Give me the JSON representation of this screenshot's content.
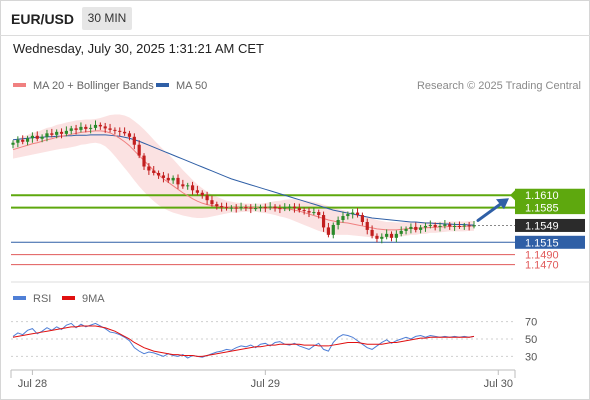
{
  "header": {
    "symbol": "EUR/USD",
    "timeframe": "30 MIN",
    "datetime": "Wednesday, July 30, 2025 1:31:21 AM CET"
  },
  "legend": {
    "ma20": {
      "label": "MA 20 + Bollinger Bands",
      "color": "#f08080"
    },
    "ma50": {
      "label": "MA 50",
      "color": "#2f5fa6"
    },
    "credit": "Research © 2025 Trading Central"
  },
  "rsi_legend": {
    "rsi": {
      "label": "RSI",
      "color": "#4f7fd6"
    },
    "ma": {
      "label": "9MA",
      "color": "#e01010"
    }
  },
  "colors": {
    "resistance": "#5ea80e",
    "support": "#2f5fa6",
    "target": "#e05a5a",
    "up": "#2a8a2a",
    "down": "#c21f1f",
    "band": "#fbe2e2",
    "current": "#2b2b2b",
    "arrow": "#2f5fa6"
  },
  "chart_data": [
    {
      "type": "candlestick",
      "title": "EUR/USD",
      "subtitle": "30 MIN",
      "x_labels": [
        "Jul 28",
        "Jul 29",
        "Jul 30"
      ],
      "x_label_positions": [
        4,
        52,
        100
      ],
      "ylim": [
        1.1455,
        1.177
      ],
      "last_price": 1.1549,
      "levels": [
        {
          "value": 1.161,
          "label": "1.1610",
          "kind": "resistance"
        },
        {
          "value": 1.1585,
          "label": "1.1585",
          "kind": "resistance"
        },
        {
          "value": 1.1549,
          "label": "1.1549",
          "kind": "current"
        },
        {
          "value": 1.1515,
          "label": "1.1515",
          "kind": "support"
        },
        {
          "value": 1.149,
          "label": "1.1490",
          "kind": "target"
        },
        {
          "value": 1.147,
          "label": "1.1470",
          "kind": "target"
        }
      ],
      "close": [
        1.1716,
        1.1722,
        1.1718,
        1.1725,
        1.173,
        1.1724,
        1.1728,
        1.1735,
        1.1732,
        1.1738,
        1.1734,
        1.174,
        1.1745,
        1.1742,
        1.1748,
        1.1744,
        1.1746,
        1.1752,
        1.1749,
        1.1745,
        1.1742,
        1.174,
        1.1738,
        1.1735,
        1.1728,
        1.1712,
        1.169,
        1.1668,
        1.166,
        1.1655,
        1.165,
        1.1645,
        1.164,
        1.1645,
        1.1632,
        1.1628,
        1.163,
        1.162,
        1.1615,
        1.161,
        1.16,
        1.1592,
        1.1588,
        1.1586,
        1.1584,
        1.1585,
        1.1584,
        1.1586,
        1.1585,
        1.1583,
        1.1584,
        1.1586,
        1.1585,
        1.1587,
        1.1584,
        1.1583,
        1.1585,
        1.1587,
        1.1584,
        1.158,
        1.1578,
        1.1575,
        1.1576,
        1.157,
        1.1545,
        1.153,
        1.155,
        1.156,
        1.1568,
        1.1572,
        1.1575,
        1.157,
        1.1556,
        1.154,
        1.1528,
        1.1522,
        1.1526,
        1.1532,
        1.1524,
        1.1532,
        1.1538,
        1.1542,
        1.1546,
        1.154,
        1.1545,
        1.1548,
        1.155,
        1.1546,
        1.1548,
        1.1551,
        1.1547,
        1.1548,
        1.1547,
        1.1549,
        1.1548,
        1.1549
      ],
      "ma20": [
        1.1702,
        1.1705,
        1.1708,
        1.1711,
        1.1714,
        1.1716,
        1.1719,
        1.1722,
        1.1724,
        1.1727,
        1.1729,
        1.1731,
        1.1733,
        1.1735,
        1.1737,
        1.1738,
        1.1739,
        1.174,
        1.174,
        1.1739,
        1.1736,
        1.1731,
        1.1725,
        1.1718,
        1.171,
        1.17,
        1.169,
        1.168,
        1.167,
        1.166,
        1.1651,
        1.1643,
        1.1636,
        1.1629,
        1.1622,
        1.1615,
        1.1609,
        1.1603,
        1.1598,
        1.1594,
        1.1591,
        1.1589,
        1.1588,
        1.1587,
        1.1586,
        1.1586,
        1.1585,
        1.1585,
        1.1585,
        1.1585,
        1.1585,
        1.1584,
        1.1584,
        1.1584,
        1.1584,
        1.1583,
        1.1583,
        1.1582,
        1.158,
        1.1578,
        1.1575,
        1.1572,
        1.1569,
        1.1566,
        1.1563,
        1.156,
        1.1558,
        1.1556,
        1.1555,
        1.1554,
        1.1552,
        1.155,
        1.1548,
        1.1546,
        1.1544,
        1.1542,
        1.1541,
        1.154,
        1.154,
        1.154,
        1.1541,
        1.1542,
        1.1543,
        1.1543,
        1.1544,
        1.1544,
        1.1545,
        1.1545,
        1.1546,
        1.1546,
        1.1547,
        1.1547,
        1.1547,
        1.1547,
        1.1548,
        1.1548
      ],
      "ma50": [
        1.1722,
        1.1723,
        1.1724,
        1.1725,
        1.1726,
        1.1727,
        1.1727,
        1.1728,
        1.1728,
        1.1729,
        1.1729,
        1.173,
        1.173,
        1.1731,
        1.1731,
        1.1731,
        1.1732,
        1.1732,
        1.1732,
        1.1732,
        1.1731,
        1.173,
        1.1729,
        1.1727,
        1.1725,
        1.1722,
        1.1719,
        1.1715,
        1.1711,
        1.1707,
        1.1703,
        1.1699,
        1.1695,
        1.1691,
        1.1687,
        1.1683,
        1.1679,
        1.1675,
        1.1671,
        1.1667,
        1.1663,
        1.1659,
        1.1655,
        1.1651,
        1.1647,
        1.1643,
        1.164,
        1.1637,
        1.1634,
        1.1631,
        1.1628,
        1.1625,
        1.1622,
        1.1619,
        1.1616,
        1.1613,
        1.161,
        1.1607,
        1.1604,
        1.1601,
        1.1598,
        1.1595,
        1.1592,
        1.1589,
        1.1586,
        1.1583,
        1.158,
        1.1578,
        1.1576,
        1.1574,
        1.1572,
        1.157,
        1.1568,
        1.1566,
        1.1564,
        1.1563,
        1.1562,
        1.1561,
        1.156,
        1.1559,
        1.1558,
        1.1557,
        1.1556,
        1.1556,
        1.1555,
        1.1554,
        1.1554,
        1.1553,
        1.1553,
        1.1552,
        1.1552,
        1.1551,
        1.1551,
        1.1551,
        1.155,
        1.155
      ],
      "band_width": [
        0.0018,
        0.0019,
        0.002,
        0.0021,
        0.0022,
        0.0022,
        0.0023,
        0.0024,
        0.0024,
        0.0025,
        0.0025,
        0.0026,
        0.0026,
        0.0026,
        0.0025,
        0.0025,
        0.0024,
        0.0024,
        0.0026,
        0.003,
        0.0036,
        0.0042,
        0.0048,
        0.0053,
        0.0057,
        0.006,
        0.0062,
        0.0063,
        0.0063,
        0.0062,
        0.0061,
        0.0059,
        0.0057,
        0.0054,
        0.005,
        0.0046,
        0.0042,
        0.0038,
        0.0034,
        0.003,
        0.0026,
        0.0022,
        0.0019,
        0.0016,
        0.0013,
        0.0011,
        0.001,
        0.0009,
        0.0008,
        0.0008,
        0.0008,
        0.0009,
        0.001,
        0.0012,
        0.0014,
        0.0016,
        0.0018,
        0.002,
        0.0022,
        0.0024,
        0.0025,
        0.0026,
        0.0027,
        0.0028,
        0.0028,
        0.0028,
        0.0027,
        0.0026,
        0.0025,
        0.0024,
        0.0023,
        0.0022,
        0.0021,
        0.002,
        0.0019,
        0.0018,
        0.0017,
        0.0016,
        0.0016,
        0.0015,
        0.0014,
        0.0014,
        0.0013,
        0.0013,
        0.0012,
        0.0012,
        0.0011,
        0.0011,
        0.0011,
        0.001,
        0.001,
        0.001,
        0.001,
        0.001,
        0.001,
        0.001
      ],
      "forecast": {
        "from": 1.1549,
        "to": 1.161
      }
    },
    {
      "type": "line",
      "title": "RSI",
      "ylim": [
        20,
        80
      ],
      "yticks": [
        30,
        50,
        70
      ],
      "series": [
        {
          "name": "RSI",
          "values": [
            53,
            57,
            55,
            60,
            62,
            56,
            59,
            63,
            60,
            64,
            61,
            66,
            68,
            63,
            67,
            64,
            66,
            68,
            65,
            62,
            58,
            57,
            55,
            52,
            48,
            40,
            36,
            33,
            35,
            34,
            32,
            30,
            33,
            31,
            30,
            32,
            28,
            31,
            30,
            29,
            31,
            33,
            35,
            36,
            38,
            37,
            40,
            42,
            41,
            43,
            40,
            44,
            45,
            42,
            46,
            47,
            44,
            43,
            45,
            42,
            40,
            38,
            42,
            45,
            38,
            36,
            46,
            52,
            55,
            54,
            52,
            48,
            44,
            40,
            38,
            42,
            46,
            49,
            45,
            48,
            50,
            52,
            50,
            53,
            54,
            52,
            54,
            53,
            52,
            53,
            52,
            53,
            52,
            53,
            52,
            53
          ]
        },
        {
          "name": "9MA",
          "values": [
            52,
            53,
            54,
            55,
            56,
            57,
            58,
            59,
            60,
            61,
            62,
            63,
            64,
            64,
            65,
            65,
            65,
            65,
            64,
            63,
            61,
            59,
            56,
            53,
            50,
            46,
            43,
            40,
            38,
            36,
            35,
            34,
            33,
            32,
            32,
            31,
            31,
            31,
            30,
            30,
            31,
            32,
            33,
            34,
            35,
            36,
            37,
            38,
            39,
            40,
            41,
            41,
            42,
            43,
            43,
            44,
            44,
            44,
            44,
            44,
            43,
            43,
            43,
            42,
            42,
            42,
            43,
            44,
            45,
            46,
            46,
            46,
            45,
            44,
            44,
            44,
            44,
            45,
            46,
            46,
            47,
            48,
            49,
            50,
            51,
            51,
            52,
            52,
            52,
            52,
            52,
            52,
            52,
            52,
            52,
            53
          ]
        }
      ]
    }
  ]
}
